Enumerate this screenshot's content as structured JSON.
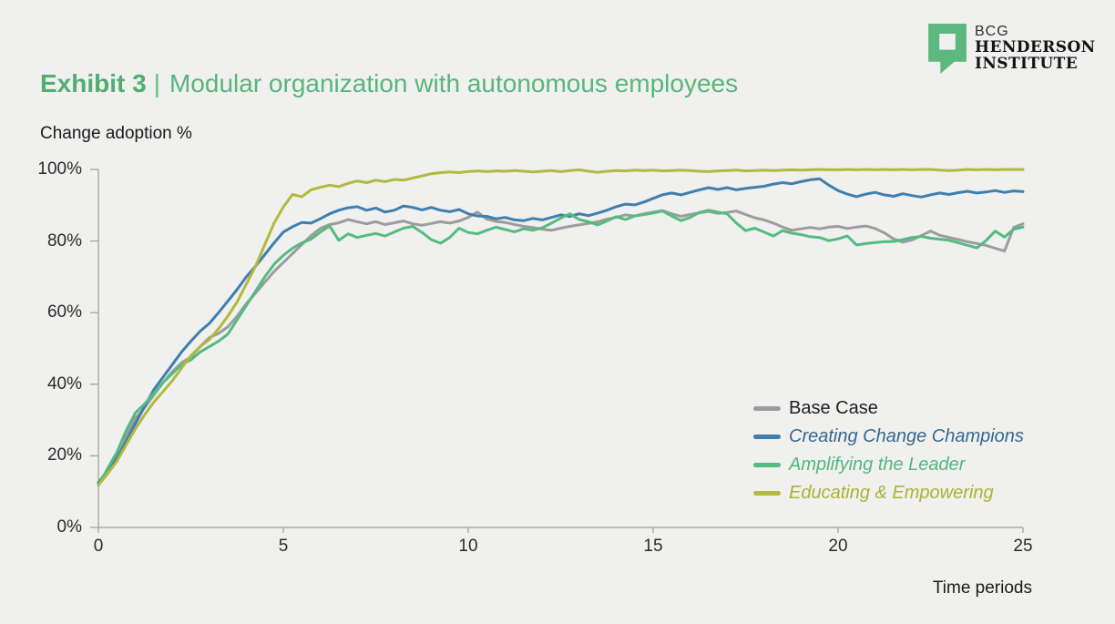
{
  "header": {
    "exhibit_label": "Exhibit 3",
    "separator": "|",
    "title": "Modular organization with autonomous employees"
  },
  "logo": {
    "line1": "BCG",
    "line2": "HENDERSON",
    "line3": "INSTITUTE",
    "icon_color": "#5cb87f",
    "icon_name": "bcg-henderson-quote-mark-icon"
  },
  "chart_data": {
    "type": "line",
    "ylabel": "Change adoption %",
    "xlabel": "Time periods",
    "xlim": [
      0,
      25
    ],
    "ylim": [
      0,
      100
    ],
    "x_ticks": [
      0,
      5,
      10,
      15,
      20,
      25
    ],
    "y_ticks": [
      "0%",
      "20%",
      "40%",
      "60%",
      "80%",
      "100%"
    ],
    "grid": false,
    "legend_position": "right-middle",
    "axis_color": "#9b9b9b",
    "x_start": 0,
    "x_step": 0.25,
    "series": [
      {
        "name": "Base Case",
        "color": "#9c9c9c",
        "label_color": "#1f1f1f",
        "italic": false,
        "values": [
          12.5,
          16.0,
          20.0,
          25.5,
          30.5,
          33.5,
          37.0,
          40.5,
          43.5,
          46.0,
          47.6,
          50.5,
          53.0,
          54.2,
          56.0,
          59.0,
          62.5,
          65.5,
          68.5,
          71.5,
          74.0,
          76.5,
          79.0,
          81.5,
          83.5,
          84.6,
          85.1,
          86.0,
          85.4,
          84.8,
          85.4,
          84.6,
          85.1,
          85.6,
          84.8,
          84.4,
          84.9,
          85.4,
          85.0,
          85.6,
          86.6,
          88.1,
          86.1,
          85.5,
          85.2,
          84.6,
          84.1,
          83.8,
          83.3,
          83.0,
          83.6,
          84.1,
          84.5,
          84.9,
          85.4,
          86.1,
          86.6,
          87.3,
          87.0,
          87.6,
          88.1,
          88.5,
          87.6,
          86.9,
          87.4,
          87.9,
          88.3,
          87.7,
          88.0,
          88.4,
          87.4,
          86.5,
          85.9,
          85.0,
          83.9,
          83.0,
          83.4,
          83.8,
          83.4,
          83.9,
          84.1,
          83.5,
          83.9,
          84.2,
          83.5,
          82.3,
          80.6,
          79.7,
          80.3,
          81.5,
          82.8,
          81.6,
          81.0,
          80.4,
          79.8,
          79.3,
          78.8,
          78.0,
          77.2,
          83.8,
          84.8
        ]
      },
      {
        "name": "Creating Change Champions",
        "color": "#3e7fad",
        "label_color": "#36688e",
        "italic": true,
        "values": [
          12.5,
          15.8,
          19.2,
          24.0,
          29.0,
          33.8,
          38.5,
          42.0,
          45.5,
          49.0,
          52.0,
          54.8,
          57.0,
          60.0,
          63.2,
          66.5,
          70.0,
          73.0,
          76.2,
          79.5,
          82.5,
          84.0,
          85.2,
          85.0,
          86.2,
          87.6,
          88.6,
          89.3,
          89.6,
          88.6,
          89.2,
          88.1,
          88.6,
          89.8,
          89.4,
          88.7,
          89.4,
          88.6,
          88.2,
          88.8,
          87.6,
          87.0,
          86.9,
          86.2,
          86.6,
          85.9,
          85.7,
          86.3,
          85.9,
          86.6,
          87.3,
          86.9,
          87.6,
          87.1,
          87.8,
          88.6,
          89.6,
          90.3,
          90.1,
          90.9,
          91.9,
          92.9,
          93.4,
          92.9,
          93.6,
          94.3,
          94.9,
          94.4,
          94.9,
          94.3,
          94.7,
          95.0,
          95.3,
          95.9,
          96.3,
          96.0,
          96.6,
          97.1,
          97.4,
          95.6,
          94.1,
          93.1,
          92.4,
          93.1,
          93.6,
          92.9,
          92.5,
          93.2,
          92.7,
          92.3,
          92.9,
          93.4,
          93.0,
          93.5,
          93.9,
          93.4,
          93.7,
          94.1,
          93.6,
          94.0,
          93.8
        ]
      },
      {
        "name": "Amplifying the Leader",
        "color": "#54bb80",
        "label_color": "#52b77d",
        "italic": true,
        "values": [
          11.8,
          16.5,
          21.0,
          27.0,
          32.0,
          34.5,
          37.5,
          40.5,
          43.0,
          45.5,
          46.8,
          49.0,
          50.5,
          52.0,
          54.0,
          58.0,
          62.0,
          66.0,
          70.0,
          73.5,
          76.0,
          78.0,
          79.5,
          80.5,
          82.5,
          84.2,
          80.2,
          82.0,
          81.0,
          81.6,
          82.1,
          81.4,
          82.5,
          83.6,
          84.1,
          82.4,
          80.4,
          79.4,
          81.0,
          83.6,
          82.4,
          82.0,
          83.0,
          83.9,
          83.2,
          82.6,
          83.4,
          83.0,
          83.7,
          85.0,
          86.4,
          87.6,
          86.0,
          85.4,
          84.5,
          85.6,
          86.8,
          86.0,
          87.0,
          87.4,
          87.8,
          88.4,
          87.0,
          85.7,
          86.6,
          88.0,
          88.6,
          88.1,
          87.6,
          85.0,
          82.9,
          83.6,
          82.5,
          81.4,
          82.9,
          82.2,
          81.8,
          81.2,
          81.0,
          80.1,
          80.6,
          81.4,
          78.9,
          79.3,
          79.6,
          79.8,
          79.9,
          80.4,
          81.0,
          81.3,
          80.8,
          80.5,
          80.2,
          79.5,
          78.8,
          78.1,
          80.1,
          82.8,
          81.1,
          83.3,
          83.9
        ]
      },
      {
        "name": "Educating & Empowering",
        "color": "#b2b93c",
        "label_color": "#a9b233",
        "italic": true,
        "values": [
          11.8,
          15.0,
          18.5,
          23.0,
          27.5,
          31.5,
          35.0,
          38.0,
          41.0,
          44.5,
          48.0,
          50.5,
          52.5,
          55.5,
          59.0,
          63.0,
          68.0,
          73.0,
          79.0,
          85.0,
          89.5,
          93.0,
          92.4,
          94.3,
          95.0,
          95.6,
          95.2,
          96.1,
          96.8,
          96.3,
          97.0,
          96.6,
          97.2,
          97.0,
          97.6,
          98.2,
          98.8,
          99.1,
          99.3,
          99.1,
          99.4,
          99.6,
          99.4,
          99.6,
          99.5,
          99.7,
          99.5,
          99.3,
          99.5,
          99.7,
          99.4,
          99.7,
          99.9,
          99.5,
          99.2,
          99.5,
          99.7,
          99.6,
          99.8,
          99.7,
          99.8,
          99.6,
          99.7,
          99.8,
          99.7,
          99.5,
          99.4,
          99.6,
          99.7,
          99.8,
          99.6,
          99.7,
          99.8,
          99.7,
          99.8,
          99.9,
          99.8,
          99.9,
          100.0,
          99.9,
          99.9,
          100.0,
          99.9,
          100.0,
          99.9,
          100.0,
          99.9,
          100.0,
          99.9,
          100.0,
          100.0,
          99.8,
          99.7,
          99.8,
          100.0,
          99.9,
          100.0,
          99.9,
          100.0,
          100.0,
          100.0
        ]
      }
    ]
  }
}
